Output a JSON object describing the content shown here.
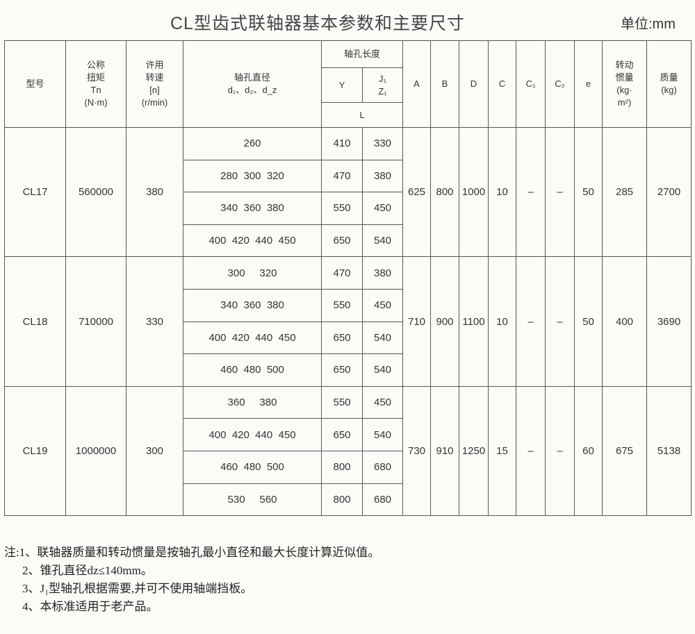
{
  "title": "CL型齿式联轴器基本参数和主要尺寸",
  "unit": "单位:mm",
  "headers": {
    "model": "型号",
    "torque": [
      "公称",
      "扭矩",
      "Tn",
      "(N·m)"
    ],
    "speed": [
      "许用",
      "转速",
      "[n]",
      "(r/min)"
    ],
    "bore": [
      "轴孔直径",
      "d₁、d₂、d_z"
    ],
    "length": "轴孔长度",
    "Y": "Y",
    "J1Z1": [
      "J₁",
      "Z₁"
    ],
    "L": "L",
    "A": "A",
    "B": "B",
    "D": "D",
    "C": "C",
    "C1": "C₁",
    "C2": "C₂",
    "e": "e",
    "inertia": [
      "转动",
      "惯量",
      "(kg·",
      "m²)"
    ],
    "mass": [
      "质量",
      "(kg)"
    ]
  },
  "groups": [
    {
      "model": "CL17",
      "torque": "560000",
      "speed": "380",
      "A": "625",
      "B": "800",
      "D": "1000",
      "C": "10",
      "C1": "–",
      "C2": "–",
      "e": "50",
      "inertia": "285",
      "mass": "2700",
      "rows": [
        {
          "d": "260",
          "Y": "410",
          "J": "330"
        },
        {
          "d": "280  300  320",
          "Y": "470",
          "J": "380"
        },
        {
          "d": "340  360  380",
          "Y": "550",
          "J": "450"
        },
        {
          "d": "400  420  440  450",
          "Y": "650",
          "J": "540"
        }
      ]
    },
    {
      "model": "CL18",
      "torque": "710000",
      "speed": "330",
      "A": "710",
      "B": "900",
      "D": "1100",
      "C": "10",
      "C1": "–",
      "C2": "–",
      "e": "50",
      "inertia": "400",
      "mass": "3690",
      "rows": [
        {
          "d": "300     320",
          "Y": "470",
          "J": "380"
        },
        {
          "d": "340  360  380",
          "Y": "550",
          "J": "450"
        },
        {
          "d": "400  420  440  450",
          "Y": "650",
          "J": "540"
        },
        {
          "d": "460  480  500",
          "Y": "650",
          "J": "540"
        }
      ]
    },
    {
      "model": "CL19",
      "torque": "1000000",
      "speed": "300",
      "A": "730",
      "B": "910",
      "D": "1250",
      "C": "15",
      "C1": "–",
      "C2": "–",
      "e": "60",
      "inertia": "675",
      "mass": "5138",
      "rows": [
        {
          "d": "360     380",
          "Y": "550",
          "J": "450"
        },
        {
          "d": "400  420  440  450",
          "Y": "650",
          "J": "540"
        },
        {
          "d": "460  480  500",
          "Y": "800",
          "J": "680"
        },
        {
          "d": "530     560",
          "Y": "800",
          "J": "680"
        }
      ]
    }
  ],
  "notes": [
    "注:1、联轴器质量和转动惯量是按轴孔最小直径和最大长度计算近似值。",
    "2、锥孔直径dz≤140mm。",
    "3、J₁型轴孔根据需要,并可不使用轴端挡板。",
    "4、本标准适用于老产品。"
  ]
}
